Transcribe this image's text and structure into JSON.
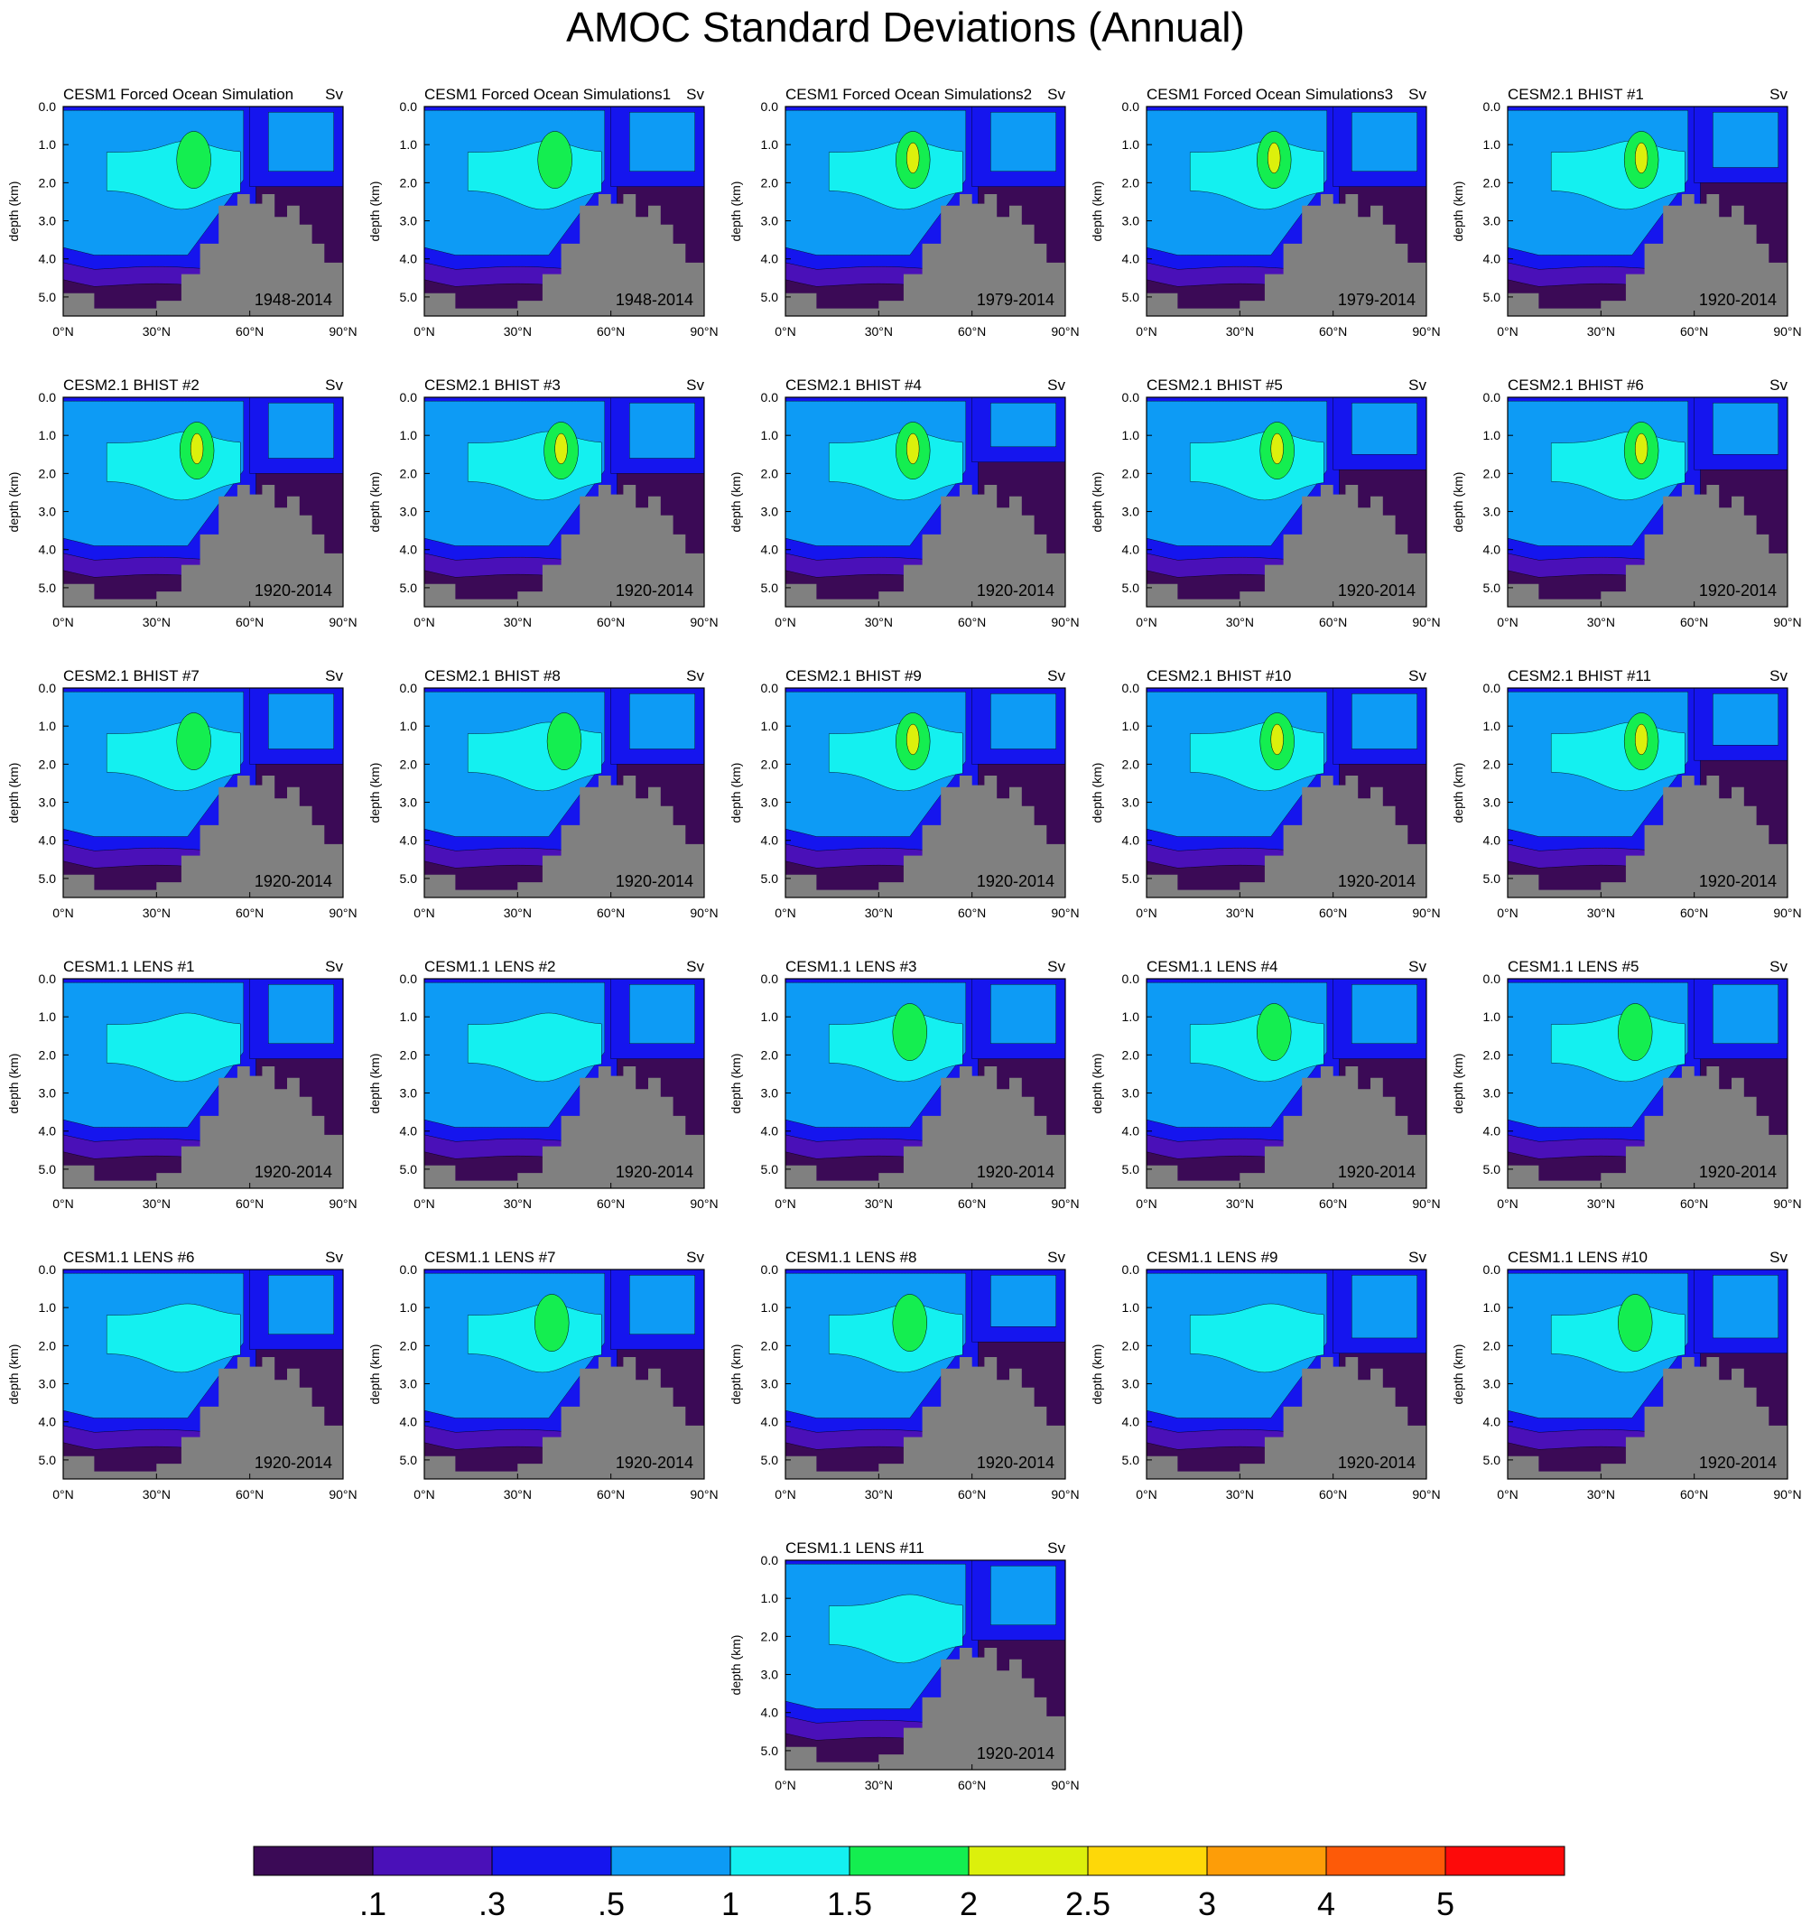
{
  "title": "AMOC Standard Deviations (Annual)",
  "chart_data": {
    "type": "heatmap",
    "title": "AMOC Standard Deviations (Annual)",
    "units": "Sv",
    "xlabel": "",
    "ylabel": "depth (km)",
    "xlim": [
      0,
      90
    ],
    "ylim": [
      5.5,
      0.0
    ],
    "x_ticks": [
      "0°N",
      "30°N",
      "60°N",
      "90°N"
    ],
    "x_tick_values": [
      0,
      30,
      60,
      90
    ],
    "y_ticks": [
      "0.0",
      "1.0",
      "2.0",
      "3.0",
      "4.0",
      "5.0"
    ],
    "y_tick_values": [
      0.0,
      1.0,
      2.0,
      3.0,
      4.0,
      5.0
    ],
    "colorbar": {
      "levels": [
        ".1",
        ".3",
        ".5",
        "1",
        "1.5",
        "2",
        "2.5",
        "3",
        "4",
        "5"
      ],
      "colors": [
        "#3b0a56",
        "#4a10b8",
        "#1515ee",
        "#0d9bf5",
        "#14f0f0",
        "#14ee50",
        "#dcf00c",
        "#fed808",
        "#fd9d08",
        "#fd5a08",
        "#fd0a0a"
      ]
    },
    "land_color": "#808080",
    "panels": [
      {
        "title": "CESM1 Forced Ocean Simulation",
        "units": "Sv",
        "period": "1948-2014",
        "max_level": 5,
        "peak_lat": 42,
        "lab_depth": 1.9
      },
      {
        "title": "CESM1 Forced Ocean Simulations1",
        "units": "Sv",
        "period": "1948-2014",
        "max_level": 5,
        "peak_lat": 42,
        "lab_depth": 1.9
      },
      {
        "title": "CESM1 Forced Ocean Simulations2",
        "units": "Sv",
        "period": "1979-2014",
        "max_level": 6,
        "peak_lat": 41,
        "lab_depth": 1.9
      },
      {
        "title": "CESM1 Forced Ocean Simulations3",
        "units": "Sv",
        "period": "1979-2014",
        "max_level": 6,
        "peak_lat": 41,
        "lab_depth": 1.9
      },
      {
        "title": "CESM2.1 BHIST #1",
        "units": "Sv",
        "period": "1920-2014",
        "max_level": 6,
        "peak_lat": 43,
        "lab_depth": 1.8
      },
      {
        "title": "CESM2.1 BHIST #2",
        "units": "Sv",
        "period": "1920-2014",
        "max_level": 6,
        "peak_lat": 43,
        "lab_depth": 1.8
      },
      {
        "title": "CESM2.1 BHIST #3",
        "units": "Sv",
        "period": "1920-2014",
        "max_level": 6,
        "peak_lat": 44,
        "lab_depth": 1.8
      },
      {
        "title": "CESM2.1 BHIST #4",
        "units": "Sv",
        "period": "1920-2014",
        "max_level": 6,
        "peak_lat": 41,
        "lab_depth": 1.5
      },
      {
        "title": "CESM2.1 BHIST #5",
        "units": "Sv",
        "period": "1920-2014",
        "max_level": 6,
        "peak_lat": 42,
        "lab_depth": 1.7
      },
      {
        "title": "CESM2.1 BHIST #6",
        "units": "Sv",
        "period": "1920-2014",
        "max_level": 6,
        "peak_lat": 43,
        "lab_depth": 1.7
      },
      {
        "title": "CESM2.1 BHIST #7",
        "units": "Sv",
        "period": "1920-2014",
        "max_level": 5,
        "peak_lat": 42,
        "lab_depth": 1.8
      },
      {
        "title": "CESM2.1 BHIST #8",
        "units": "Sv",
        "period": "1920-2014",
        "max_level": 5,
        "peak_lat": 45,
        "lab_depth": 1.8
      },
      {
        "title": "CESM2.1 BHIST #9",
        "units": "Sv",
        "period": "1920-2014",
        "max_level": 6,
        "peak_lat": 41,
        "lab_depth": 1.8
      },
      {
        "title": "CESM2.1 BHIST #10",
        "units": "Sv",
        "period": "1920-2014",
        "max_level": 6,
        "peak_lat": 42,
        "lab_depth": 1.8
      },
      {
        "title": "CESM2.1 BHIST #11",
        "units": "Sv",
        "period": "1920-2014",
        "max_level": 6,
        "peak_lat": 43,
        "lab_depth": 1.7
      },
      {
        "title": "CESM1.1 LENS #1",
        "units": "Sv",
        "period": "1920-2014",
        "max_level": 4,
        "peak_lat": 42,
        "lab_depth": 1.9
      },
      {
        "title": "CESM1.1 LENS #2",
        "units": "Sv",
        "period": "1920-2014",
        "max_level": 4,
        "peak_lat": 42,
        "lab_depth": 1.9
      },
      {
        "title": "CESM1.1 LENS #3",
        "units": "Sv",
        "period": "1920-2014",
        "max_level": 5,
        "peak_lat": 40,
        "lab_depth": 1.9
      },
      {
        "title": "CESM1.1 LENS #4",
        "units": "Sv",
        "period": "1920-2014",
        "max_level": 5,
        "peak_lat": 41,
        "lab_depth": 1.9
      },
      {
        "title": "CESM1.1 LENS #5",
        "units": "Sv",
        "period": "1920-2014",
        "max_level": 5,
        "peak_lat": 41,
        "lab_depth": 1.9
      },
      {
        "title": "CESM1.1 LENS #6",
        "units": "Sv",
        "period": "1920-2014",
        "max_level": 4,
        "peak_lat": 42,
        "lab_depth": 1.9
      },
      {
        "title": "CESM1.1 LENS #7",
        "units": "Sv",
        "period": "1920-2014",
        "max_level": 5,
        "peak_lat": 41,
        "lab_depth": 1.9
      },
      {
        "title": "CESM1.1 LENS #8",
        "units": "Sv",
        "period": "1920-2014",
        "max_level": 5,
        "peak_lat": 40,
        "lab_depth": 1.7
      },
      {
        "title": "CESM1.1 LENS #9",
        "units": "Sv",
        "period": "1920-2014",
        "max_level": 4,
        "peak_lat": 42,
        "lab_depth": 2.0
      },
      {
        "title": "CESM1.1 LENS #10",
        "units": "Sv",
        "period": "1920-2014",
        "max_level": 5,
        "peak_lat": 41,
        "lab_depth": 2.0
      },
      {
        "title": "CESM1.1 LENS #11",
        "units": "Sv",
        "period": "1920-2014",
        "max_level": 4,
        "peak_lat": 42,
        "lab_depth": 1.9
      }
    ]
  }
}
